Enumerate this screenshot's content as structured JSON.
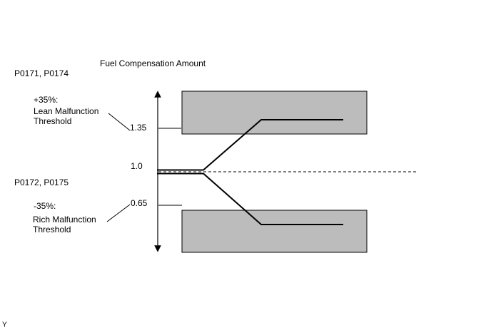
{
  "title": "Fuel Compensation Amount",
  "lean": {
    "codes": "P0171, P0174",
    "percent": "+35%:",
    "label_lines": [
      "Lean Malfunction",
      "Threshold"
    ],
    "level": "1.35"
  },
  "baseline": "1.0",
  "rich": {
    "codes": "P0172, P0175",
    "percent": "-35%:",
    "label_lines": [
      "Rich Malfunction",
      "Threshold"
    ],
    "level": "0.65"
  },
  "footer": "Y"
}
